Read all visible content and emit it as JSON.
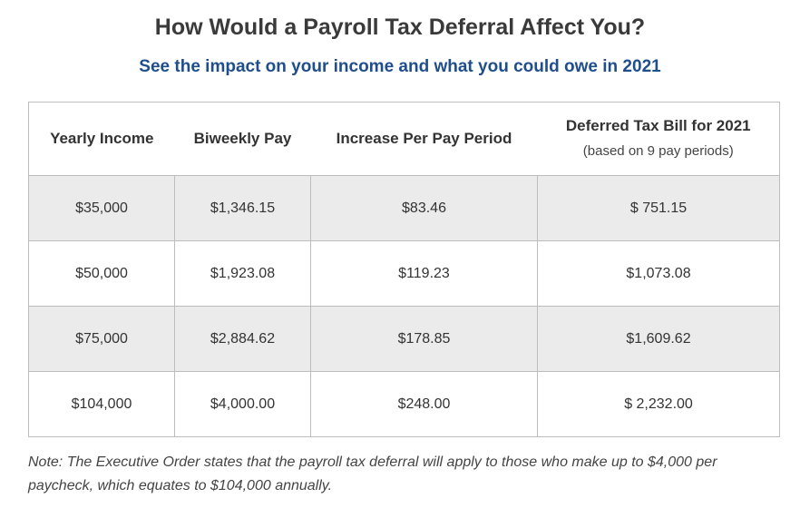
{
  "header": {
    "title": "How Would a Payroll Tax Deferral Affect You?",
    "subtitle": "See the impact on your income and what you could owe in 2021"
  },
  "table": {
    "columns": [
      {
        "label": "Yearly Income",
        "sub": ""
      },
      {
        "label": "Biweekly Pay",
        "sub": ""
      },
      {
        "label": "Increase Per Pay Period",
        "sub": ""
      },
      {
        "label": "Deferred Tax Bill for 2021",
        "sub": "(based on 9 pay periods)"
      }
    ],
    "rows": [
      [
        "$35,000",
        "$1,346.15",
        "$83.46",
        "$ 751.15"
      ],
      [
        "$50,000",
        "$1,923.08",
        "$119.23",
        "$1,073.08"
      ],
      [
        "$75,000",
        "$2,884.62",
        "$178.85",
        "$1,609.62"
      ],
      [
        "$104,000",
        "$4,000.00",
        "$248.00",
        "$ 2,232.00"
      ]
    ]
  },
  "note": "Note: The Executive Order states that the payroll tax deferral will apply to those who make up to $4,000 per paycheck, which equates to $104,000 annually.",
  "colors": {
    "title": "#3a3a3a",
    "subtitle": "#1f4e8c",
    "shaded_row": "#ebebeb",
    "border": "#bdbdbd"
  }
}
